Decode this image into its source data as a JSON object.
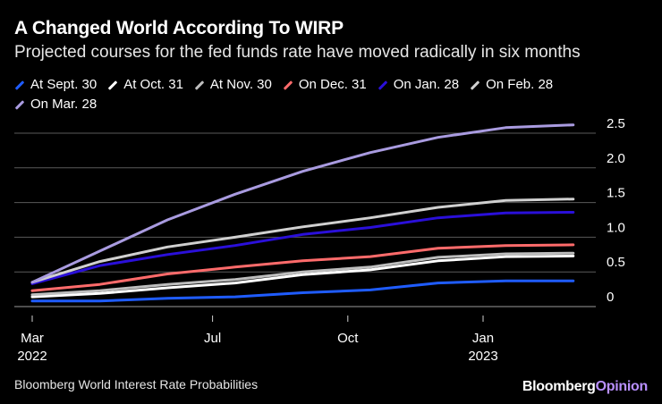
{
  "chart_data": {
    "type": "line",
    "title": "A Changed World According To WIRP",
    "subtitle": "Projected courses for the fed funds rate have moved radically in six months",
    "source": "Bloomberg World Interest Rate Probabilities",
    "brand": {
      "part1": "Bloomberg",
      "part2": "Opinion"
    },
    "ylim": [
      0,
      2.5
    ],
    "yticks": [
      "2.5",
      "2.0",
      "1.5",
      "1.0",
      "0.5",
      "0"
    ],
    "ytick_values": [
      2.5,
      2.0,
      1.5,
      1.0,
      0.5,
      0
    ],
    "xlim": [
      0,
      12.5
    ],
    "xticks": [
      {
        "value": 0,
        "label1": "Mar",
        "label2": "2022"
      },
      {
        "value": 4,
        "label1": "Jul",
        "label2": ""
      },
      {
        "value": 7,
        "label1": "Oct",
        "label2": ""
      },
      {
        "value": 10,
        "label1": "Jan",
        "label2": "2023"
      }
    ],
    "x": [
      0,
      1.5,
      3,
      4.5,
      6,
      7.5,
      9,
      10.5,
      12
    ],
    "series": [
      {
        "name": "At Sept. 30",
        "color": "#1f5cff",
        "values": [
          0.08,
          0.08,
          0.12,
          0.14,
          0.2,
          0.24,
          0.34,
          0.37,
          0.37
        ]
      },
      {
        "name": "At Oct. 31",
        "color": "#ffffff",
        "values": [
          0.14,
          0.19,
          0.27,
          0.34,
          0.46,
          0.53,
          0.66,
          0.72,
          0.73
        ]
      },
      {
        "name": "At Nov. 30",
        "color": "#bdbdbd",
        "values": [
          0.17,
          0.23,
          0.32,
          0.39,
          0.5,
          0.57,
          0.71,
          0.76,
          0.77
        ]
      },
      {
        "name": "On Dec. 31",
        "color": "#ff6b6b",
        "values": [
          0.23,
          0.32,
          0.47,
          0.57,
          0.66,
          0.72,
          0.84,
          0.88,
          0.89
        ]
      },
      {
        "name": "On Jan. 28",
        "color": "#2a0fd9",
        "values": [
          0.33,
          0.59,
          0.75,
          0.88,
          1.04,
          1.14,
          1.28,
          1.35,
          1.36
        ]
      },
      {
        "name": "On Feb. 28",
        "color": "#d0d0d0",
        "values": [
          0.35,
          0.65,
          0.86,
          1.0,
          1.15,
          1.28,
          1.43,
          1.53,
          1.55
        ]
      },
      {
        "name": "On Mar. 28",
        "color": "#a99be0",
        "values": [
          0.35,
          0.8,
          1.25,
          1.62,
          1.95,
          2.22,
          2.44,
          2.58,
          2.62
        ]
      }
    ]
  }
}
